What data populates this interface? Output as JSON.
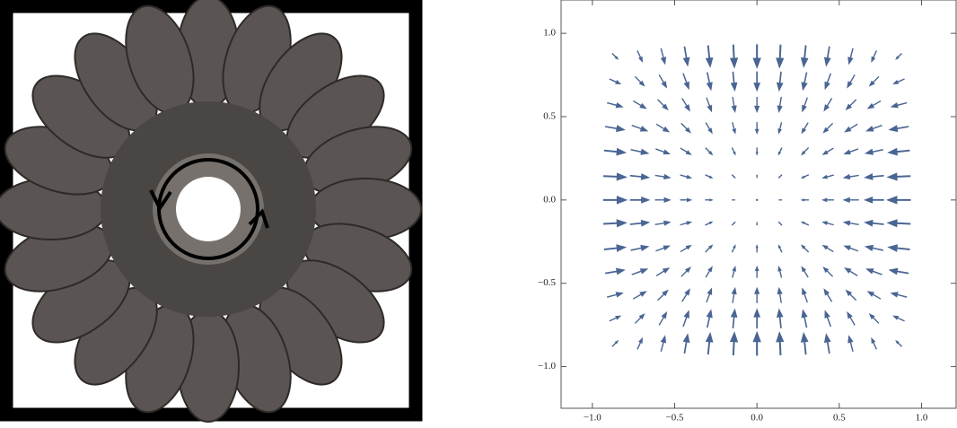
{
  "chart_data": {
    "type": "vector",
    "color": "#4a6593",
    "xlim": [
      -1.19,
      1.21
    ],
    "ylim": [
      -1.25,
      1.2
    ],
    "xticks": [
      {
        "value": -1,
        "label": "−1.0"
      },
      {
        "value": -0.5,
        "label": "−0.5"
      },
      {
        "value": 0,
        "label": "0.0"
      },
      {
        "value": 0.5,
        "label": "0.5"
      },
      {
        "value": 1,
        "label": "1.0"
      }
    ],
    "yticks": [
      {
        "value": -1,
        "label": "−1.0"
      },
      {
        "value": -0.5,
        "label": "−0.5"
      },
      {
        "value": 0,
        "label": "0.0"
      },
      {
        "value": 0.5,
        "label": "0.5"
      },
      {
        "value": 1,
        "label": "1.0"
      }
    ],
    "x": [
      -0.86,
      -0.71,
      -0.57,
      -0.43,
      -0.29,
      -0.14,
      0,
      0.14,
      0.29,
      0.43,
      0.57,
      0.71,
      0.86
    ],
    "y": [
      -0.86,
      -0.71,
      -0.57,
      -0.43,
      -0.29,
      -0.14,
      0,
      0.14,
      0.29,
      0.43,
      0.57,
      0.71,
      0.86
    ],
    "u": [
      [
        0.23,
        0.19,
        0.15,
        0.12,
        0.08,
        0.04,
        0,
        -0.04,
        -0.08,
        -0.12,
        -0.15,
        -0.19,
        -0.23
      ],
      [
        0.42,
        0.35,
        0.28,
        0.21,
        0.14,
        0.07,
        0,
        -0.07,
        -0.14,
        -0.21,
        -0.28,
        -0.35,
        -0.42
      ],
      [
        0.58,
        0.48,
        0.38,
        0.29,
        0.19,
        0.09,
        0,
        -0.09,
        -0.19,
        -0.29,
        -0.38,
        -0.48,
        -0.58
      ],
      [
        0.71,
        0.58,
        0.47,
        0.35,
        0.24,
        0.11,
        0,
        -0.11,
        -0.24,
        -0.35,
        -0.47,
        -0.58,
        -0.71
      ],
      [
        0.79,
        0.65,
        0.52,
        0.4,
        0.27,
        0.13,
        0,
        -0.13,
        -0.27,
        -0.4,
        -0.52,
        -0.65,
        -0.79
      ],
      [
        0.84,
        0.7,
        0.56,
        0.42,
        0.28,
        0.14,
        0,
        -0.14,
        -0.28,
        -0.42,
        -0.56,
        -0.7,
        -0.84
      ],
      [
        0.86,
        0.71,
        0.57,
        0.43,
        0.29,
        0.14,
        0,
        -0.14,
        -0.29,
        -0.43,
        -0.57,
        -0.71,
        -0.86
      ],
      [
        0.84,
        0.7,
        0.56,
        0.42,
        0.28,
        0.14,
        0,
        -0.14,
        -0.28,
        -0.42,
        -0.56,
        -0.7,
        -0.84
      ],
      [
        0.79,
        0.65,
        0.52,
        0.4,
        0.27,
        0.13,
        0,
        -0.13,
        -0.27,
        -0.4,
        -0.52,
        -0.65,
        -0.79
      ],
      [
        0.71,
        0.58,
        0.47,
        0.35,
        0.24,
        0.11,
        0,
        -0.11,
        -0.24,
        -0.35,
        -0.47,
        -0.58,
        -0.71
      ],
      [
        0.58,
        0.48,
        0.38,
        0.29,
        0.19,
        0.09,
        0,
        -0.09,
        -0.19,
        -0.29,
        -0.38,
        -0.48,
        -0.58
      ],
      [
        0.42,
        0.35,
        0.28,
        0.21,
        0.14,
        0.07,
        0,
        -0.07,
        -0.14,
        -0.21,
        -0.28,
        -0.35,
        -0.42
      ],
      [
        0.23,
        0.19,
        0.15,
        0.12,
        0.08,
        0.04,
        0,
        -0.04,
        -0.08,
        -0.12,
        -0.15,
        -0.19,
        -0.23
      ]
    ],
    "v": [
      [
        0.23,
        0.42,
        0.58,
        0.71,
        0.79,
        0.84,
        0.86,
        0.84,
        0.79,
        0.71,
        0.58,
        0.42,
        0.23
      ],
      [
        0.19,
        0.35,
        0.48,
        0.58,
        0.65,
        0.7,
        0.71,
        0.7,
        0.65,
        0.58,
        0.48,
        0.35,
        0.19
      ],
      [
        0.15,
        0.28,
        0.38,
        0.47,
        0.52,
        0.56,
        0.57,
        0.56,
        0.52,
        0.47,
        0.38,
        0.28,
        0.15
      ],
      [
        0.12,
        0.21,
        0.29,
        0.35,
        0.4,
        0.42,
        0.43,
        0.42,
        0.4,
        0.35,
        0.29,
        0.21,
        0.12
      ],
      [
        0.08,
        0.14,
        0.19,
        0.24,
        0.27,
        0.28,
        0.29,
        0.28,
        0.27,
        0.24,
        0.19,
        0.14,
        0.08
      ],
      [
        0.04,
        0.07,
        0.09,
        0.11,
        0.13,
        0.14,
        0.14,
        0.14,
        0.13,
        0.11,
        0.09,
        0.07,
        0.04
      ],
      [
        0,
        0,
        0,
        0,
        0,
        0,
        0,
        0,
        0,
        0,
        0,
        0,
        0
      ],
      [
        -0.04,
        -0.07,
        -0.09,
        -0.11,
        -0.13,
        -0.14,
        -0.14,
        -0.14,
        -0.13,
        -0.11,
        -0.09,
        -0.07,
        -0.04
      ],
      [
        -0.08,
        -0.14,
        -0.19,
        -0.24,
        -0.27,
        -0.28,
        -0.29,
        -0.28,
        -0.27,
        -0.24,
        -0.19,
        -0.14,
        -0.08
      ],
      [
        -0.12,
        -0.21,
        -0.29,
        -0.35,
        -0.4,
        -0.42,
        -0.43,
        -0.42,
        -0.4,
        -0.35,
        -0.29,
        -0.21,
        -0.12
      ],
      [
        -0.15,
        -0.28,
        -0.38,
        -0.47,
        -0.52,
        -0.56,
        -0.57,
        -0.56,
        -0.52,
        -0.47,
        -0.38,
        -0.28,
        -0.15
      ],
      [
        -0.19,
        -0.35,
        -0.48,
        -0.58,
        -0.65,
        -0.7,
        -0.71,
        -0.7,
        -0.65,
        -0.58,
        -0.48,
        -0.35,
        -0.19
      ],
      [
        -0.23,
        -0.42,
        -0.58,
        -0.71,
        -0.79,
        -0.84,
        -0.86,
        -0.84,
        -0.79,
        -0.71,
        -0.58,
        -0.42,
        -0.23
      ]
    ]
  }
}
